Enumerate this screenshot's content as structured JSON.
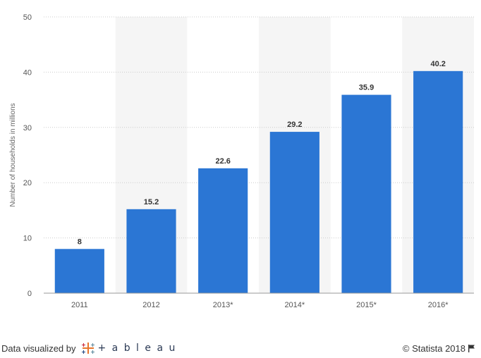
{
  "chart_data": {
    "type": "bar",
    "categories": [
      "2011",
      "2012",
      "2013*",
      "2014*",
      "2015*",
      "2016*"
    ],
    "values": [
      8,
      15.2,
      22.6,
      29.2,
      35.9,
      40.2
    ],
    "value_labels": [
      "8",
      "15.2",
      "22.6",
      "29.2",
      "35.9",
      "40.2"
    ],
    "ylabel": "Number of households in millions",
    "xlabel": "",
    "ylim": [
      0,
      50
    ],
    "yticks": [
      "0",
      "10",
      "20",
      "30",
      "40",
      "50"
    ],
    "grid": true,
    "bar_color": "#2b76d4",
    "band_color": "#f5f5f5"
  },
  "footer": {
    "visualized_by": "Data visualized by",
    "logo_word": "+ a b l e a u",
    "copyright": "© Statista 2018"
  },
  "icons": {
    "logo": "tableau-cross-icon",
    "flag": "flag-icon"
  }
}
